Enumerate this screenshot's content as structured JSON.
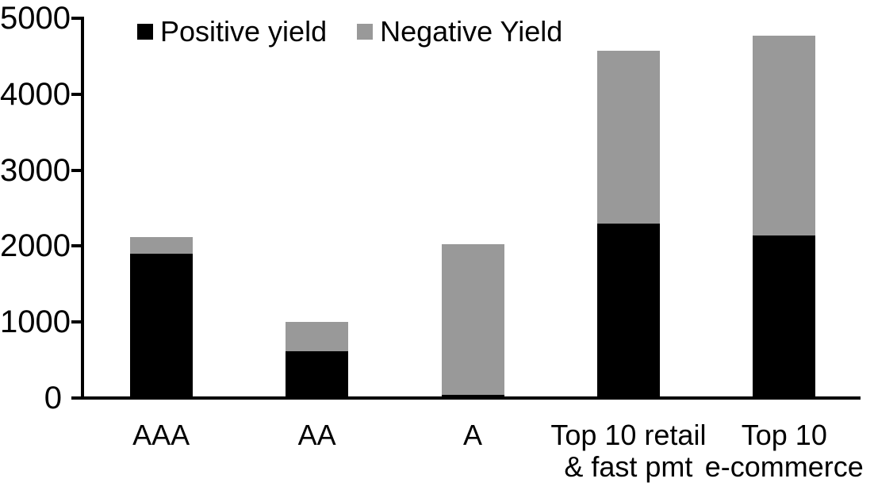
{
  "chart_data": {
    "type": "bar",
    "stacked": true,
    "title": "",
    "xlabel": "",
    "ylabel": "",
    "categories": [
      "AAA",
      "AA",
      "A",
      "Top 10 retail\n& fast pmt",
      "Top 10\ne-commerce"
    ],
    "series": [
      {
        "name": "Positive yield",
        "color": "#000000",
        "values": [
          1900,
          620,
          40,
          2300,
          2140
        ]
      },
      {
        "name": "Negative Yield",
        "color": "#999999",
        "values": [
          220,
          380,
          1990,
          2270,
          2630
        ]
      }
    ],
    "totals": [
      2120,
      1000,
      2030,
      4570,
      4770
    ],
    "ylim": [
      0,
      5000
    ],
    "yticks": [
      0,
      1000,
      2000,
      3000,
      4000,
      5000
    ],
    "grid": false,
    "legend_position": "top"
  },
  "colors": {
    "positive_series": "#000000",
    "negative_series": "#999999",
    "axis": "#000000",
    "background": "#ffffff"
  }
}
